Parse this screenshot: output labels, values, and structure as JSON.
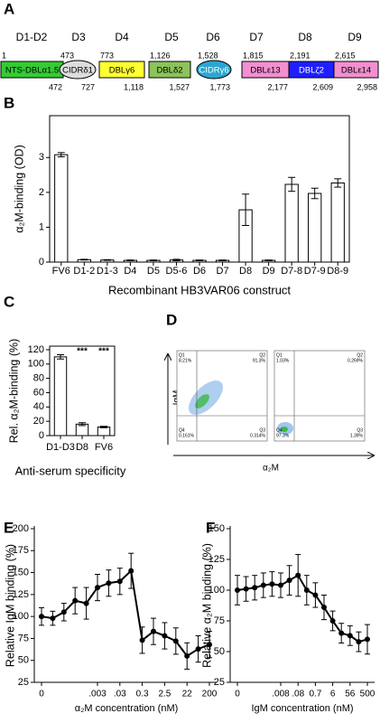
{
  "diagram": {
    "panel": "A",
    "groups": [
      "D1-D2",
      "D3",
      "D4",
      "D5",
      "D6",
      "D7",
      "D8",
      "D9"
    ],
    "domains": [
      {
        "name": "NTS-DBLα1.5",
        "start": "1",
        "end": "472",
        "color": "#33cc33",
        "text_color": "#000000",
        "shape": "rect"
      },
      {
        "name": "CIDRδ1",
        "start": "473",
        "end": "727",
        "color": "#dddddd",
        "text_color": "#000000",
        "shape": "ellipse"
      },
      {
        "name": "DBLγ6",
        "start": "773",
        "end": "1,118",
        "color": "#ffff33",
        "text_color": "#000000",
        "shape": "rect"
      },
      {
        "name": "DBLδ2",
        "start": "1,126",
        "end": "1,527",
        "color": "#8cc35a",
        "text_color": "#000000",
        "shape": "rect"
      },
      {
        "name": "CIDRγ6",
        "start": "1,528",
        "end": "1,773",
        "color": "#2aa6d0",
        "text_color": "#ffffff",
        "shape": "ellipse"
      },
      {
        "name": "DBLε13",
        "start": "1,815",
        "end": "2,177",
        "color": "#f28fd0",
        "text_color": "#000000",
        "shape": "rect"
      },
      {
        "name": "DBLζ2",
        "start": "2,191",
        "end": "2,609",
        "color": "#1f1fff",
        "text_color": "#ffffff",
        "shape": "rect"
      },
      {
        "name": "DBLε14",
        "start": "2,615",
        "end": "2,958",
        "color": "#f28fd0",
        "text_color": "#000000",
        "shape": "rect"
      }
    ]
  },
  "flow_cytometry": {
    "panel": "D",
    "y_label": "IgM",
    "x_label": "α₂M",
    "plots": [
      {
        "quadrants": [
          "Q1",
          "Q2",
          "Q4",
          "Q3"
        ],
        "percentages": [
          "8.21%",
          "91.3%",
          "0.161%",
          "0.314%"
        ]
      },
      {
        "quadrants": [
          "Q1",
          "Q2",
          "Q4",
          "Q3"
        ],
        "percentages": [
          "1.03%",
          "0.269%",
          "97.3%",
          "1.39%"
        ]
      }
    ]
  },
  "chart_data": [
    {
      "type": "bar",
      "panel": "B",
      "y_label": "α₂M-binding (OD)",
      "x_label": "Recombinant HB3VAR06 construct",
      "categories": [
        "FV6",
        "D1-2",
        "D1-3",
        "D4",
        "D5",
        "D5-6",
        "D6",
        "D7",
        "D8",
        "D9",
        "D7-8",
        "D7-9",
        "D8-9"
      ],
      "values": [
        3.08,
        0.07,
        0.06,
        0.05,
        0.05,
        0.06,
        0.05,
        0.05,
        1.5,
        0.05,
        2.23,
        1.97,
        2.27
      ],
      "errors": [
        0.06,
        0.01,
        0.01,
        0.01,
        0.01,
        0.02,
        0.01,
        0.01,
        0.45,
        0.01,
        0.2,
        0.15,
        0.12
      ],
      "color": "#ffffff",
      "ylim": [
        0,
        4.2
      ],
      "yticks": [
        0,
        1,
        2,
        3
      ]
    },
    {
      "type": "bar",
      "panel": "C",
      "y_label": "Rel. α₂M-binding (%)",
      "x_label": "Anti-serum specificity",
      "categories": [
        "D1-D3",
        "D8",
        "FV6"
      ],
      "values": [
        110,
        16,
        12
      ],
      "errors": [
        3,
        2,
        1
      ],
      "significance": [
        null,
        "***",
        "***"
      ],
      "color": "#ffffff",
      "ylim": [
        0,
        125
      ],
      "yticks": [
        0,
        20,
        40,
        60,
        80,
        100,
        120
      ]
    },
    {
      "type": "line",
      "panel": "E",
      "y_label": "Relative IgM binding (%)",
      "x_label": "α₂M concentration (nM)",
      "categories": [
        "0",
        null,
        null,
        null,
        null,
        ".003",
        null,
        ".03",
        null,
        "0.3",
        null,
        "2.5",
        null,
        "22",
        null,
        "200"
      ],
      "values": [
        100,
        98,
        105,
        118,
        115,
        133,
        138,
        140,
        152,
        73,
        83,
        78,
        72,
        55,
        63,
        68
      ],
      "errors": [
        10,
        8,
        10,
        15,
        18,
        15,
        15,
        15,
        20,
        15,
        15,
        15,
        15,
        15,
        15,
        15
      ],
      "color": "#000000",
      "ylim": [
        25,
        200
      ],
      "yticks": [
        25,
        50,
        75,
        100,
        125,
        150,
        175,
        200
      ]
    },
    {
      "type": "line",
      "panel": "F",
      "y_label": "Relative α₂M binding (%)",
      "x_label": "IgM concentration (nM)",
      "categories": [
        "0",
        null,
        null,
        null,
        null,
        ".008",
        null,
        ".08",
        null,
        "0.7",
        null,
        "6",
        null,
        "56",
        null,
        "500"
      ],
      "values": [
        100,
        101,
        102,
        104,
        105,
        104,
        108,
        112,
        100,
        96,
        86,
        75,
        65,
        63,
        58,
        60
      ],
      "errors": [
        12,
        10,
        10,
        10,
        10,
        10,
        12,
        17,
        12,
        10,
        10,
        8,
        8,
        8,
        8,
        12
      ],
      "color": "#000000",
      "ylim": [
        25,
        150
      ],
      "yticks": [
        25,
        50,
        75,
        100,
        125,
        150
      ]
    }
  ]
}
